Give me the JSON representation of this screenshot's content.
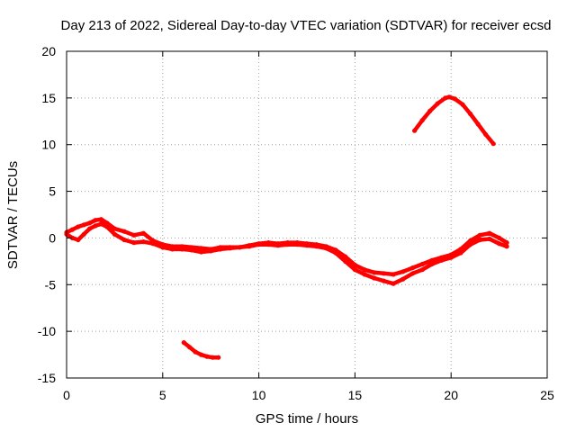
{
  "chart_data": {
    "type": "scatter",
    "title": "Day 213 of 2022, Sidereal Day-to-day VTEC variation (SDTVAR) for receiver ecsd",
    "xlabel": "GPS time / hours",
    "ylabel": "SDTVAR / TECUs",
    "xlim": [
      0,
      25
    ],
    "ylim": [
      -15,
      20
    ],
    "xticks": [
      "0",
      "5",
      "10",
      "15",
      "20",
      "25"
    ],
    "yticks": [
      "-15",
      "-10",
      "-5",
      "0",
      "5",
      "10",
      "15",
      "20"
    ],
    "grid": true,
    "marker_color": "#ff0000",
    "series": [
      {
        "name": "main-trace-a",
        "x": [
          0.0,
          0.3,
          0.6,
          0.9,
          1.2,
          1.5,
          1.8,
          2.1,
          2.5,
          3.0,
          3.5,
          4.0,
          4.5,
          5.0,
          5.5,
          6.0,
          6.5,
          7.0,
          7.5,
          8.0,
          8.5,
          9.0,
          9.5,
          10.0,
          10.5,
          11.0,
          11.5,
          12.0,
          12.5,
          13.0,
          13.5,
          14.0,
          14.5,
          15.0,
          15.5,
          16.0,
          16.5,
          17.0,
          17.5,
          18.0,
          18.5,
          19.0,
          19.5,
          20.0,
          20.5,
          21.0,
          21.5,
          22.0,
          22.5,
          22.9
        ],
        "y": [
          0.6,
          0.9,
          1.2,
          1.4,
          1.6,
          1.9,
          2.0,
          1.6,
          1.0,
          0.7,
          0.3,
          0.5,
          -0.3,
          -0.7,
          -0.9,
          -0.9,
          -1.0,
          -1.1,
          -1.2,
          -1.0,
          -1.0,
          -1.0,
          -0.8,
          -0.6,
          -0.5,
          -0.6,
          -0.5,
          -0.5,
          -0.6,
          -0.7,
          -0.9,
          -1.3,
          -2.0,
          -2.9,
          -3.4,
          -3.7,
          -3.8,
          -3.9,
          -3.6,
          -3.2,
          -2.8,
          -2.4,
          -2.1,
          -1.8,
          -1.2,
          -0.3,
          0.3,
          0.5,
          0.0,
          -0.5
        ]
      },
      {
        "name": "main-trace-b",
        "x": [
          0.0,
          0.3,
          0.6,
          0.9,
          1.2,
          1.5,
          1.8,
          2.1,
          2.5,
          3.0,
          3.5,
          4.0,
          4.5,
          5.0,
          5.5,
          6.0,
          6.5,
          7.0,
          7.5,
          8.0,
          8.5,
          9.0,
          9.5,
          10.0,
          10.5,
          11.0,
          11.5,
          12.0,
          12.5,
          13.0,
          13.5,
          14.0,
          14.5,
          15.0,
          15.5,
          16.0,
          16.5,
          17.0,
          17.5,
          18.0,
          18.5,
          19.0,
          19.5,
          20.0,
          20.5,
          21.0,
          21.5,
          22.0,
          22.5,
          22.9
        ],
        "y": [
          0.4,
          0.0,
          -0.2,
          0.4,
          1.0,
          1.3,
          1.5,
          1.2,
          0.4,
          -0.2,
          -0.5,
          -0.4,
          -0.6,
          -1.0,
          -1.2,
          -1.2,
          -1.3,
          -1.5,
          -1.4,
          -1.2,
          -1.1,
          -1.0,
          -0.9,
          -0.7,
          -0.7,
          -0.8,
          -0.7,
          -0.7,
          -0.8,
          -0.9,
          -1.1,
          -1.6,
          -2.5,
          -3.4,
          -3.9,
          -4.3,
          -4.6,
          -4.9,
          -4.4,
          -3.8,
          -3.4,
          -2.8,
          -2.4,
          -2.1,
          -1.6,
          -0.7,
          -0.2,
          -0.1,
          -0.6,
          -0.9
        ]
      },
      {
        "name": "arc-trace",
        "x": [
          18.1,
          18.5,
          18.9,
          19.3,
          19.7,
          19.9,
          20.2,
          20.6,
          21.0,
          21.4,
          21.8,
          22.2
        ],
        "y": [
          11.5,
          12.6,
          13.6,
          14.4,
          15.0,
          15.1,
          14.9,
          14.3,
          13.3,
          12.2,
          11.1,
          10.1
        ]
      },
      {
        "name": "low-trace",
        "x": [
          6.1,
          6.4,
          6.7,
          7.0,
          7.3,
          7.6,
          7.9
        ],
        "y": [
          -11.2,
          -11.7,
          -12.2,
          -12.5,
          -12.7,
          -12.8,
          -12.8
        ]
      }
    ]
  }
}
